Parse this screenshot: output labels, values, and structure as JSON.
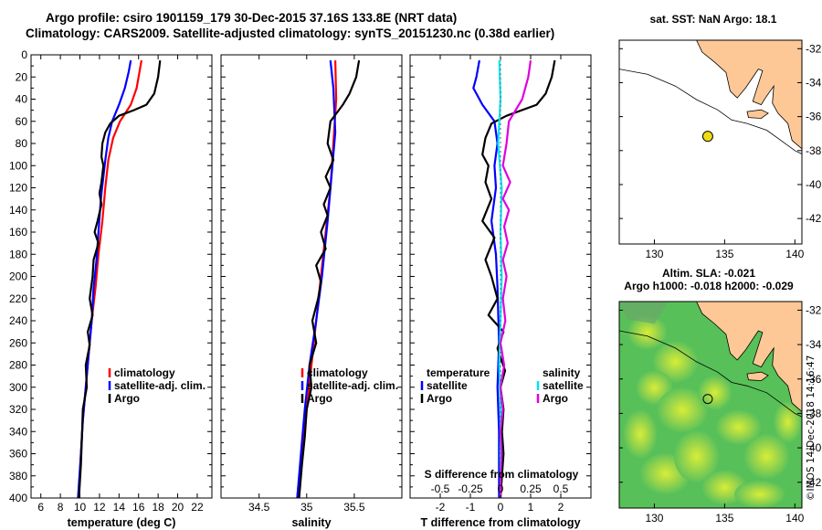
{
  "title_line1": "Argo profile: csiro 1901159_179 30-Dec-2015 37.16S 133.8E (NRT data)",
  "title_line2": "Climatology: CARS2009. Satellite-adjusted climatology: synTS_20151230.nc (0.38d earlier)",
  "side_label": "©IMOS 14-Dec-2018 14:16:47",
  "colors": {
    "climatology": "#ff0000",
    "satellite": "#0000ff",
    "argo": "#000000",
    "satellite_salinity": "#00e5f0",
    "argo_salinity": "#e000e0",
    "land": "#fdc896",
    "sst_ocean": "#ffffff",
    "argo_marker": "#f0dc14"
  },
  "chart_data": [
    {
      "type": "line",
      "name": "temperature",
      "xlabel": "temperature (deg C)",
      "ylabel": "",
      "xlim": [
        5,
        23.5
      ],
      "ylim": [
        400,
        0
      ],
      "xticks": [
        6,
        8,
        10,
        12,
        14,
        16,
        18,
        20,
        22
      ],
      "yticks": [
        0,
        20,
        40,
        60,
        80,
        100,
        120,
        140,
        160,
        180,
        200,
        220,
        240,
        260,
        280,
        300,
        320,
        340,
        360,
        380,
        400
      ],
      "legend": [
        "climatology",
        "satellite-adj. clim.",
        "Argo"
      ],
      "series": [
        {
          "name": "climatology",
          "color": "#ff0000",
          "points": [
            [
              16.3,
              5
            ],
            [
              16.1,
              15
            ],
            [
              15.8,
              30
            ],
            [
              15.2,
              45
            ],
            [
              14.1,
              60
            ],
            [
              13.4,
              75
            ],
            [
              12.9,
              95
            ],
            [
              12.6,
              120
            ],
            [
              12.3,
              150
            ],
            [
              11.9,
              180
            ],
            [
              11.6,
              210
            ],
            [
              11.2,
              240
            ],
            [
              10.9,
              270
            ],
            [
              10.6,
              300
            ],
            [
              10.3,
              330
            ],
            [
              10.1,
              360
            ],
            [
              9.9,
              400
            ]
          ]
        },
        {
          "name": "satellite-adj. clim.",
          "color": "#0000ff",
          "points": [
            [
              15.2,
              5
            ],
            [
              15.0,
              15
            ],
            [
              14.6,
              30
            ],
            [
              14.0,
              45
            ],
            [
              13.3,
              60
            ],
            [
              12.9,
              75
            ],
            [
              12.6,
              95
            ],
            [
              12.4,
              110
            ],
            [
              12.2,
              125
            ],
            [
              12.1,
              135
            ],
            [
              11.9,
              160
            ],
            [
              11.7,
              185
            ],
            [
              11.4,
              210
            ],
            [
              11.2,
              240
            ],
            [
              10.9,
              270
            ],
            [
              10.6,
              300
            ],
            [
              10.3,
              330
            ],
            [
              10.1,
              360
            ],
            [
              9.8,
              400
            ]
          ]
        },
        {
          "name": "Argo",
          "color": "#000000",
          "points": [
            [
              18.2,
              5
            ],
            [
              18.0,
              20
            ],
            [
              17.6,
              35
            ],
            [
              16.8,
              45
            ],
            [
              15.5,
              50
            ],
            [
              14.0,
              55
            ],
            [
              13.1,
              62
            ],
            [
              12.6,
              70
            ],
            [
              12.3,
              80
            ],
            [
              12.2,
              92
            ],
            [
              12.4,
              100
            ],
            [
              12.2,
              115
            ],
            [
              12.0,
              125
            ],
            [
              12.2,
              135
            ],
            [
              11.8,
              150
            ],
            [
              11.5,
              160
            ],
            [
              11.9,
              170
            ],
            [
              11.4,
              185
            ],
            [
              11.3,
              200
            ],
            [
              11.0,
              220
            ],
            [
              11.3,
              235
            ],
            [
              10.8,
              250
            ],
            [
              11.0,
              262
            ],
            [
              10.6,
              280
            ],
            [
              10.7,
              300
            ],
            [
              10.3,
              320
            ],
            [
              10.2,
              345
            ],
            [
              10.1,
              370
            ],
            [
              9.9,
              400
            ]
          ]
        }
      ]
    },
    {
      "type": "line",
      "name": "salinity",
      "xlabel": "salinity",
      "ylabel": "",
      "xlim": [
        34.1,
        36.0
      ],
      "ylim": [
        400,
        0
      ],
      "xticks": [
        34.5,
        35,
        35.5
      ],
      "xtick_labels": [
        "34.5",
        "35",
        "35.5"
      ],
      "legend": [
        "climatology",
        "satellite-adj. clim.",
        "Argo"
      ],
      "series": [
        {
          "name": "climatology",
          "color": "#ff0000",
          "points": [
            [
              35.3,
              5
            ],
            [
              35.31,
              40
            ],
            [
              35.28,
              80
            ],
            [
              35.25,
              120
            ],
            [
              35.2,
              160
            ],
            [
              35.15,
              200
            ],
            [
              35.1,
              240
            ],
            [
              35.05,
              280
            ],
            [
              35.0,
              320
            ],
            [
              34.95,
              360
            ],
            [
              34.9,
              400
            ]
          ]
        },
        {
          "name": "satellite-adj. clim.",
          "color": "#0000ff",
          "points": [
            [
              35.25,
              5
            ],
            [
              35.28,
              30
            ],
            [
              35.3,
              70
            ],
            [
              35.26,
              110
            ],
            [
              35.22,
              150
            ],
            [
              35.16,
              200
            ],
            [
              35.1,
              240
            ],
            [
              35.03,
              280
            ],
            [
              34.98,
              320
            ],
            [
              34.94,
              360
            ],
            [
              34.9,
              400
            ]
          ]
        },
        {
          "name": "Argo",
          "color": "#000000",
          "points": [
            [
              35.55,
              5
            ],
            [
              35.52,
              20
            ],
            [
              35.45,
              35
            ],
            [
              35.38,
              45
            ],
            [
              35.25,
              60
            ],
            [
              35.22,
              80
            ],
            [
              35.28,
              95
            ],
            [
              35.2,
              110
            ],
            [
              35.25,
              120
            ],
            [
              35.18,
              135
            ],
            [
              35.22,
              145
            ],
            [
              35.15,
              160
            ],
            [
              35.2,
              175
            ],
            [
              35.1,
              190
            ],
            [
              35.15,
              205
            ],
            [
              35.12,
              220
            ],
            [
              35.06,
              240
            ],
            [
              35.1,
              260
            ],
            [
              35.03,
              280
            ],
            [
              35.05,
              300
            ],
            [
              35.0,
              320
            ],
            [
              34.98,
              345
            ],
            [
              34.95,
              370
            ],
            [
              34.92,
              400
            ]
          ]
        }
      ]
    },
    {
      "type": "line",
      "name": "difference",
      "xlabel": "T difference from climatology",
      "xlim": [
        -3,
        3
      ],
      "ylim": [
        400,
        0
      ],
      "xticks": [
        -2,
        -1,
        0,
        1,
        2
      ],
      "xtick_labels": [
        "-2",
        "-1",
        "0",
        "1",
        "2"
      ],
      "top_axis_label": "S difference from climatology",
      "top_xlim": [
        -0.75,
        0.75
      ],
      "top_xticks": [
        -0.5,
        -0.25,
        0,
        0.25,
        0.5
      ],
      "top_xtick_labels": [
        "-0.5",
        "-0.25",
        "0",
        "0.25",
        "0.5"
      ],
      "legend_temperature_title": "temperature",
      "legend_salinity_title": "salinity",
      "legend_temperature": [
        "satellite",
        "Argo"
      ],
      "legend_salinity": [
        "satellite",
        "Argo"
      ],
      "series": [
        {
          "name": "T satellite",
          "color": "#0000ff",
          "axis": "T",
          "points": [
            [
              -0.7,
              5
            ],
            [
              -0.8,
              20
            ],
            [
              -0.9,
              30
            ],
            [
              -0.6,
              45
            ],
            [
              -0.2,
              60
            ],
            [
              -0.1,
              80
            ],
            [
              -0.2,
              100
            ],
            [
              -0.15,
              120
            ],
            [
              -0.3,
              150
            ],
            [
              -0.15,
              180
            ],
            [
              -0.1,
              210
            ],
            [
              -0.05,
              260
            ],
            [
              -0.1,
              300
            ],
            [
              -0.05,
              340
            ],
            [
              -0.05,
              380
            ],
            [
              -0.05,
              400
            ]
          ]
        },
        {
          "name": "T Argo",
          "color": "#000000",
          "axis": "T",
          "points": [
            [
              1.8,
              5
            ],
            [
              1.7,
              20
            ],
            [
              1.5,
              35
            ],
            [
              1.2,
              45
            ],
            [
              0.2,
              55
            ],
            [
              -0.3,
              62
            ],
            [
              -0.5,
              75
            ],
            [
              -0.6,
              90
            ],
            [
              -0.4,
              100
            ],
            [
              -0.5,
              115
            ],
            [
              -0.3,
              130
            ],
            [
              -0.6,
              150
            ],
            [
              -0.2,
              165
            ],
            [
              -0.5,
              185
            ],
            [
              -0.3,
              200
            ],
            [
              -0.1,
              220
            ],
            [
              -0.4,
              235
            ],
            [
              0.1,
              250
            ],
            [
              -0.1,
              265
            ],
            [
              0.15,
              285
            ],
            [
              0.0,
              300
            ],
            [
              0.1,
              320
            ],
            [
              0.05,
              340
            ],
            [
              0.1,
              360
            ],
            [
              0.05,
              380
            ],
            [
              0.0,
              400
            ]
          ]
        },
        {
          "name": "S satellite",
          "color": "#00e5f0",
          "axis": "S",
          "points": [
            [
              -0.01,
              5
            ],
            [
              0.0,
              40
            ],
            [
              -0.02,
              80
            ],
            [
              0.01,
              120
            ],
            [
              0.0,
              160
            ],
            [
              0.01,
              200
            ],
            [
              0.0,
              240
            ],
            [
              -0.01,
              280
            ],
            [
              0.0,
              320
            ],
            [
              0.0,
              360
            ],
            [
              0.0,
              400
            ]
          ]
        },
        {
          "name": "S Argo",
          "color": "#e000e0",
          "axis": "S",
          "points": [
            [
              0.25,
              5
            ],
            [
              0.23,
              20
            ],
            [
              0.18,
              40
            ],
            [
              0.07,
              60
            ],
            [
              0.05,
              80
            ],
            [
              0.02,
              100
            ],
            [
              0.08,
              115
            ],
            [
              0.02,
              130
            ],
            [
              0.07,
              140
            ],
            [
              0.03,
              155
            ],
            [
              0.06,
              170
            ],
            [
              0.02,
              185
            ],
            [
              0.05,
              200
            ],
            [
              0.02,
              220
            ],
            [
              0.04,
              240
            ],
            [
              0.0,
              260
            ],
            [
              0.03,
              280
            ],
            [
              0.0,
              300
            ],
            [
              0.02,
              320
            ],
            [
              0.0,
              340
            ],
            [
              0.01,
              360
            ],
            [
              0.0,
              380
            ],
            [
              0.0,
              400
            ]
          ]
        }
      ]
    },
    {
      "type": "map",
      "name": "sst-map",
      "title": "sat. SST: NaN Argo: 18.1",
      "xlim": [
        127.5,
        140.5
      ],
      "ylim": [
        -43.5,
        -31.5
      ],
      "xticks": [
        130,
        135,
        140
      ],
      "yticks": [
        -32,
        -34,
        -36,
        -38,
        -40,
        -42
      ],
      "argo_position": [
        133.8,
        -37.16
      ]
    },
    {
      "type": "map",
      "name": "sla-map",
      "title_line1": "Altim. SLA: -0.021",
      "title_line2": "Argo h1000: -0.018 h2000: -0.029",
      "xlim": [
        127.5,
        140.5
      ],
      "ylim": [
        -43.5,
        -31.5
      ],
      "xticks": [
        130,
        135,
        140
      ],
      "yticks": [
        -32,
        -34,
        -36,
        -38,
        -40,
        -42
      ],
      "argo_position": [
        133.8,
        -37.16
      ]
    }
  ]
}
